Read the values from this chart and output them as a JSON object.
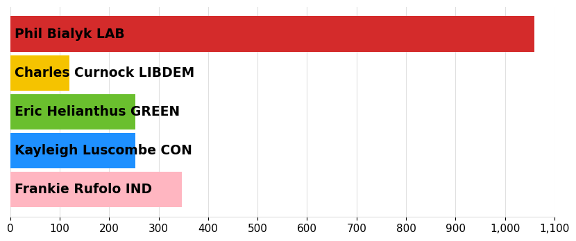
{
  "candidates": [
    "Frankie Rufolo IND",
    "Kayleigh Luscombe CON",
    "Eric Helianthus GREEN",
    "Charles Curnock LIBDEM",
    "Phil Bialyk LAB"
  ],
  "values": [
    347,
    253,
    253,
    120,
    1060
  ],
  "colors": [
    "#ffb6c1",
    "#1e90ff",
    "#6abf2e",
    "#f5c300",
    "#d42b2b"
  ],
  "xlim": [
    0,
    1100
  ],
  "xticks": [
    0,
    100,
    200,
    300,
    400,
    500,
    600,
    700,
    800,
    900,
    1000,
    1100
  ],
  "xtick_labels": [
    "0",
    "100",
    "200",
    "300",
    "400",
    "500",
    "600",
    "700",
    "800",
    "900",
    "1,000",
    "1,100"
  ],
  "label_fontsize": 13.5,
  "tick_fontsize": 11,
  "bar_height": 0.92,
  "text_color": "#000000",
  "bg_color": "#ffffff",
  "grid_color": "#e0e0e0"
}
